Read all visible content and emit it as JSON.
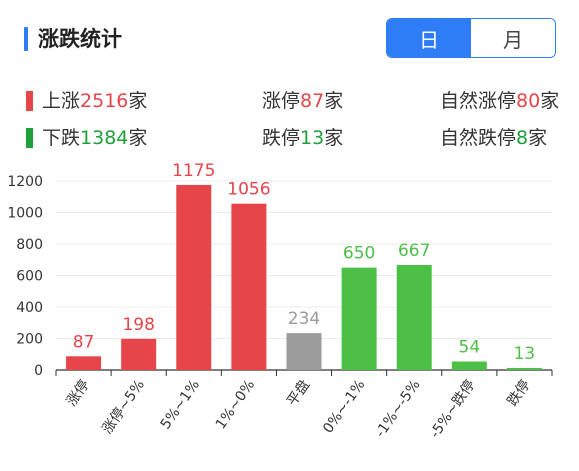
{
  "header": {
    "title": "涨跌统计",
    "toggle": {
      "day": "日",
      "month": "月",
      "selected": "日"
    }
  },
  "stats": {
    "up": {
      "prefix": "上涨",
      "value": "2516",
      "suffix": "家"
    },
    "limit_up": {
      "prefix": "涨停",
      "value": "87",
      "suffix": "家"
    },
    "natural_limit_up": {
      "prefix": "自然涨停",
      "value": "80",
      "suffix": "家"
    },
    "down": {
      "prefix": "下跌",
      "value": "1384",
      "suffix": "家"
    },
    "limit_down": {
      "prefix": "跌停",
      "value": "13",
      "suffix": "家"
    },
    "natural_limit_down": {
      "prefix": "自然跌停",
      "value": "8",
      "suffix": "家"
    }
  },
  "colors": {
    "accent": "#2f7df6",
    "up": "#e6454a",
    "flat": "#9b9b9b",
    "down": "#4cc046",
    "up_text": "#e6454a",
    "down_text": "#1fa03a"
  },
  "chart_data": {
    "type": "bar",
    "categories": [
      "涨停",
      "涨停~5%",
      "5%~1%",
      "1%~0%",
      "平盘",
      "0%~-1%",
      "-1%~-5%",
      "-5%~跌停",
      "跌停"
    ],
    "values": [
      87,
      198,
      1175,
      1056,
      234,
      650,
      667,
      54,
      13
    ],
    "bar_colors": [
      "#e6454a",
      "#e6454a",
      "#e6454a",
      "#e6454a",
      "#9b9b9b",
      "#4cc046",
      "#4cc046",
      "#4cc046",
      "#4cc046"
    ],
    "label_colors": [
      "#e6454a",
      "#e6454a",
      "#e6454a",
      "#e6454a",
      "#9b9b9b",
      "#4cc046",
      "#4cc046",
      "#4cc046",
      "#4cc046"
    ],
    "yticks": [
      0,
      200,
      400,
      600,
      800,
      1000,
      1200
    ],
    "ylim": [
      0,
      1200
    ],
    "grid": true,
    "title": "",
    "xlabel": "",
    "ylabel": ""
  }
}
